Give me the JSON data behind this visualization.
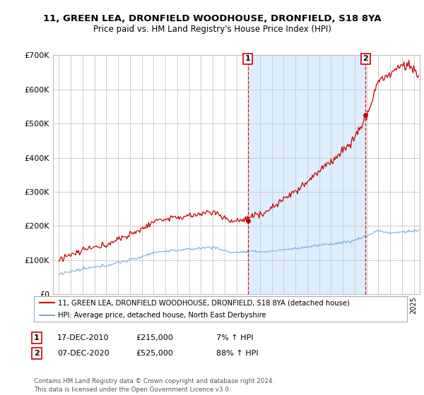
{
  "title": "11, GREEN LEA, DRONFIELD WOODHOUSE, DRONFIELD, S18 8YA",
  "subtitle": "Price paid vs. HM Land Registry's House Price Index (HPI)",
  "background_color": "#ffffff",
  "plot_bg_color": "#ffffff",
  "grid_color": "#cccccc",
  "legend_label_red": "11, GREEN LEA, DRONFIELD WOODHOUSE, DRONFIELD, S18 8YA (detached house)",
  "legend_label_blue": "HPI: Average price, detached house, North East Derbyshire",
  "annotation1_date": "17-DEC-2010",
  "annotation1_price": "£215,000",
  "annotation1_hpi": "7% ↑ HPI",
  "annotation2_date": "07-DEC-2020",
  "annotation2_price": "£525,000",
  "annotation2_hpi": "88% ↑ HPI",
  "footer": "Contains HM Land Registry data © Crown copyright and database right 2024.\nThis data is licensed under the Open Government Licence v3.0.",
  "sale1_year": 2010.96,
  "sale1_value": 215000,
  "sale2_year": 2020.93,
  "sale2_value": 525000,
  "ylim_max": 700000,
  "ylim_min": 0,
  "xlim_min": 1994.5,
  "xlim_max": 2025.5,
  "red_color": "#cc0000",
  "blue_color": "#7aaddb",
  "shade_color": "#ddeeff",
  "title_fontsize": 9.5,
  "subtitle_fontsize": 8.5
}
